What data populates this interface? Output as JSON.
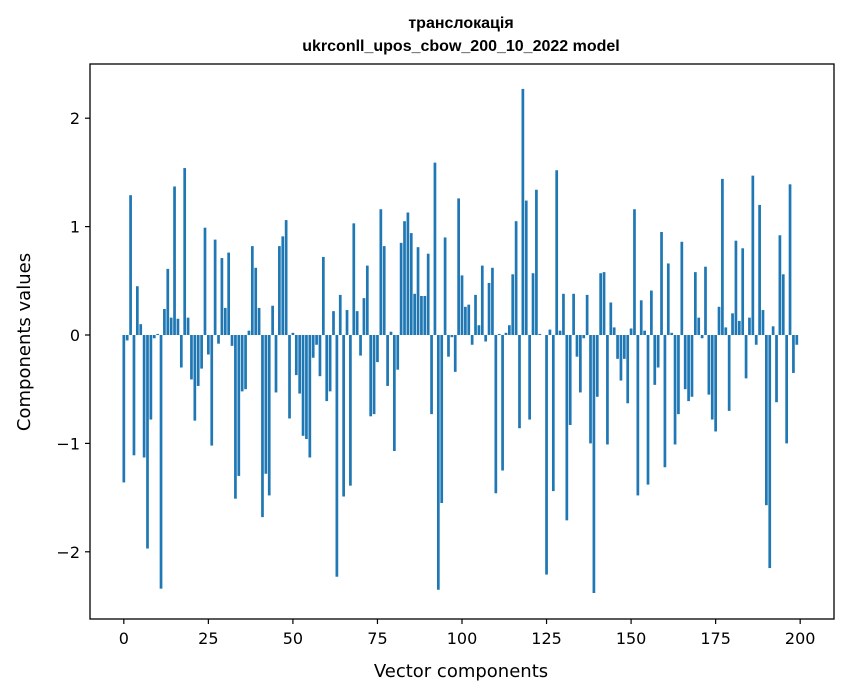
{
  "chart_data": {
    "type": "bar",
    "title": "транслокація",
    "subtitle": "ukrconll_upos_cbow_200_10_2022 model",
    "xlabel": "Vector components",
    "ylabel": "Components values",
    "xlim": [
      -10,
      210
    ],
    "ylim": [
      -2.62,
      2.5
    ],
    "xticks": [
      0,
      25,
      50,
      75,
      100,
      125,
      150,
      175,
      200
    ],
    "yticks": [
      -2,
      -1,
      0,
      1,
      2
    ],
    "ytick_labels": [
      "−2",
      "−1",
      "0",
      "1",
      "2"
    ],
    "bar_color": "#1f77b4",
    "values": [
      -1.36,
      -0.05,
      1.29,
      -1.11,
      0.45,
      0.1,
      -1.13,
      -1.97,
      -0.78,
      -0.03,
      0.01,
      -2.34,
      0.24,
      0.61,
      0.16,
      1.37,
      0.15,
      -0.3,
      1.54,
      0.16,
      -0.41,
      -0.79,
      -0.47,
      -0.31,
      0.99,
      -0.18,
      -1.02,
      0.88,
      -0.08,
      0.71,
      0.25,
      0.76,
      -0.1,
      -1.51,
      -1.3,
      -0.52,
      -0.5,
      0.04,
      0.82,
      0.62,
      0.25,
      -1.68,
      -1.28,
      -1.48,
      0.27,
      -0.53,
      0.82,
      0.91,
      1.06,
      -0.77,
      0.02,
      -0.37,
      -0.54,
      -0.93,
      -0.96,
      -1.13,
      -0.21,
      -0.09,
      -0.38,
      0.72,
      -0.61,
      -0.52,
      0.22,
      -2.23,
      0.37,
      -1.49,
      0.23,
      -1.39,
      1.03,
      0.22,
      -0.19,
      0.34,
      0.64,
      -0.75,
      -0.73,
      -0.25,
      1.16,
      0.82,
      -0.47,
      0.03,
      -1.07,
      -0.32,
      0.85,
      1.05,
      1.13,
      0.94,
      0.38,
      0.81,
      0.36,
      0.36,
      0.75,
      -0.73,
      1.59,
      -2.35,
      -1.55,
      0.9,
      -0.2,
      -0.02,
      -0.34,
      1.26,
      0.55,
      0.26,
      0.28,
      -0.09,
      0.37,
      0.09,
      0.64,
      -0.06,
      0.48,
      0.62,
      -1.46,
      0.01,
      -1.25,
      0.02,
      0.09,
      0.56,
      1.05,
      -0.86,
      2.27,
      1.24,
      -0.78,
      0.57,
      1.34,
      0.01,
      0.0,
      -2.21,
      0.05,
      -1.44,
      1.52,
      0.04,
      0.38,
      -1.71,
      -0.83,
      0.38,
      -0.2,
      -0.53,
      -0.03,
      0.37,
      -1.0,
      -2.38,
      -0.57,
      0.57,
      0.58,
      -1.01,
      0.3,
      0.07,
      -0.22,
      -0.42,
      -0.22,
      -0.63,
      0.06,
      1.16,
      -1.48,
      0.32,
      0.04,
      -1.38,
      0.41,
      -0.46,
      -0.3,
      0.95,
      -1.22,
      0.66,
      0.02,
      -1.01,
      -0.73,
      0.86,
      -0.5,
      -0.61,
      -0.57,
      0.58,
      0.16,
      -0.03,
      0.63,
      -0.55,
      -0.78,
      -0.89,
      0.26,
      1.44,
      0.07,
      -0.7,
      0.2,
      0.87,
      0.13,
      0.8,
      -0.4,
      0.16,
      1.47,
      -0.09,
      1.2,
      0.23,
      -1.57,
      -2.15,
      0.08,
      -0.62,
      0.92,
      0.56,
      -1.0,
      1.39,
      -0.35,
      -0.09
    ]
  }
}
